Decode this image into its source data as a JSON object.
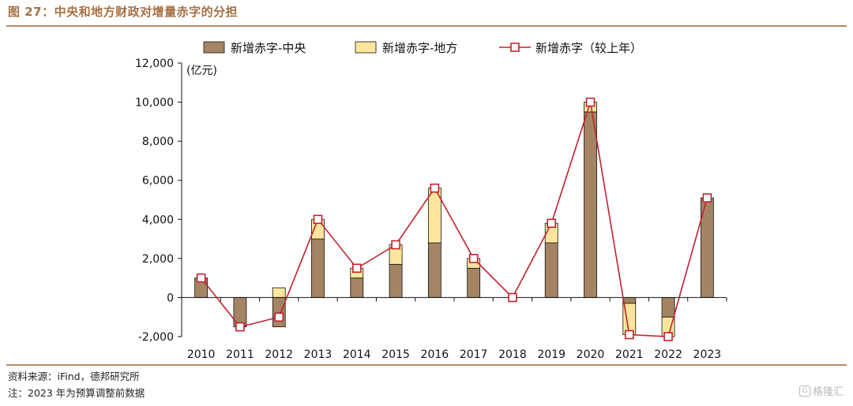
{
  "figure": {
    "title": "图 27：中央和地方财政对增量赤字的分担",
    "source": "资料来源：iFind，德邦研究所",
    "note": "注：2023 年为预算调整前数据",
    "watermark": "格隆汇",
    "watermark_icon": "g-logo-icon"
  },
  "colors": {
    "central": "#a58463",
    "local": "#fde59c",
    "line": "#c0212e",
    "frame": "#b78a62"
  },
  "chart_data": {
    "type": "bar",
    "stacked": true,
    "unit_label": "(亿元)",
    "categories": [
      "2010",
      "2011",
      "2012",
      "2013",
      "2014",
      "2015",
      "2016",
      "2017",
      "2018",
      "2019",
      "2020",
      "2021",
      "2022",
      "2023"
    ],
    "series": [
      {
        "name": "新增赤字-中央",
        "kind": "bar",
        "values": [
          1000,
          -1500,
          -1500,
          3000,
          1000,
          1700,
          2800,
          1500,
          0,
          2800,
          9500,
          -300,
          -1000,
          5100
        ]
      },
      {
        "name": "新增赤字-地方",
        "kind": "bar",
        "values": [
          0,
          0,
          500,
          1000,
          500,
          1000,
          2800,
          500,
          0,
          1000,
          500,
          -1600,
          -1000,
          0
        ]
      },
      {
        "name": "新增赤字（较上年）",
        "kind": "line",
        "values": [
          1000,
          -1500,
          -1000,
          4000,
          1500,
          2700,
          5600,
          2000,
          0,
          3800,
          10000,
          -1900,
          -2000,
          5100
        ]
      }
    ],
    "y_ticks": [
      "12,000",
      "10,000",
      "8,000",
      "6,000",
      "4,000",
      "2,000",
      "0",
      "-2,000"
    ],
    "ylim": [
      -2000,
      12000
    ],
    "legend_position": "top",
    "grid": false
  }
}
